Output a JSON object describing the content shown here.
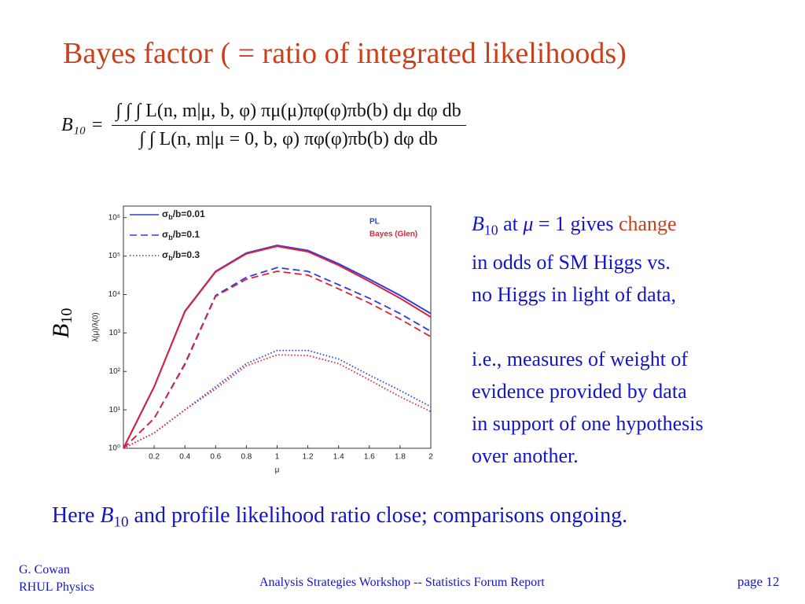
{
  "header": {
    "title": "Bayes factor ( = ratio of integrated likelihoods)"
  },
  "formula": {
    "lhs": "B₁₀ =",
    "numerator": "∫ ∫ ∫ L(n, m|μ, b, φ) πμ(μ)πφ(φ)πb(b) dμ dφ db",
    "denominator": "∫ ∫ L(n, m|μ = 0, b, φ) πφ(φ)πb(b) dφ db"
  },
  "side_text": [
    [
      [
        {
          "text": "B",
          "italic": true
        },
        {
          "text": "10",
          "sub": true
        },
        {
          "text": " at "
        },
        {
          "text": "μ",
          "italic": true
        },
        {
          "text": " = 1 gives "
        },
        {
          "text": "change",
          "color": "#c8401c"
        }
      ],
      [
        {
          "text": "in odds of SM Higgs vs."
        }
      ],
      [
        {
          "text": "no Higgs in light of data,"
        }
      ]
    ],
    [
      [
        {
          "text": "i.e., measures of weight of"
        }
      ],
      [
        {
          "text": "evidence provided by data"
        }
      ],
      [
        {
          "text": "in support of one hypothesis"
        }
      ],
      [
        {
          "text": "over another."
        }
      ]
    ]
  ],
  "bottom_text": [
    {
      "text": "Here "
    },
    {
      "text": "B",
      "italic": true
    },
    {
      "text": "10",
      "sub": true
    },
    {
      "text": " and profile likelihood ratio close; comparisons ongoing."
    }
  ],
  "footer": {
    "author": "G. Cowan",
    "institution": "RHUL Physics",
    "event": "Analysis Strategies Workshop -- Statistics Forum Report",
    "page": "page 12"
  },
  "chart_data": {
    "type": "line",
    "outer_label": {
      "symbol": "B",
      "sub": "10"
    },
    "x_label": "μ",
    "y_label": "λ(μ)/λ(0)",
    "ylog": true,
    "x": [
      0,
      0.2,
      0.4,
      0.6,
      0.8,
      1.0,
      1.2,
      1.4,
      1.6,
      1.8,
      2.0
    ],
    "xlim": [
      0,
      2
    ],
    "xticks": [
      0.2,
      0.4,
      0.6,
      0.8,
      1,
      1.2,
      1.4,
      1.6,
      1.8,
      2
    ],
    "ylim": [
      1,
      2000000
    ],
    "yticks": [
      {
        "value": 1,
        "label": "10⁰"
      },
      {
        "value": 10,
        "label": "10¹"
      },
      {
        "value": 100,
        "label": "10²"
      },
      {
        "value": 1000,
        "label": "10³"
      },
      {
        "value": 10000,
        "label": "10⁴"
      },
      {
        "value": 100000,
        "label": "10⁵"
      },
      {
        "value": 1000000,
        "label": "10⁶"
      }
    ],
    "style_legend": [
      {
        "symbol": "σ",
        "sub": "b",
        "rest": "/b=0.01",
        "dash": "solid"
      },
      {
        "symbol": "σ",
        "sub": "b",
        "rest": "/b=0.1",
        "dash": "dashed"
      },
      {
        "symbol": "σ",
        "sub": "b",
        "rest": "/b=0.3",
        "dash": "dotted"
      }
    ],
    "color_legend": [
      {
        "label": "PL",
        "color": "#2b3fe0"
      },
      {
        "label": "Bayes (Glen)",
        "color": "#e0203a"
      }
    ],
    "series": [
      {
        "name": "PL",
        "color": "#2b3fe0",
        "dash": "solid",
        "values": [
          1,
          40,
          3700,
          40000,
          120000,
          190000,
          140000,
          63000,
          25000,
          9500,
          3200
        ]
      },
      {
        "name": "Bayes (Glen)",
        "color": "#e0203a",
        "dash": "solid",
        "values": [
          1,
          40,
          3600,
          39000,
          115000,
          180000,
          130000,
          58000,
          22000,
          8000,
          2600
        ]
      },
      {
        "name": "PL",
        "color": "#2b3fe0",
        "dash": "dashed",
        "values": [
          1,
          6,
          160,
          9500,
          28000,
          50000,
          40000,
          18000,
          8000,
          3200,
          1100
        ]
      },
      {
        "name": "Bayes (Glen)",
        "color": "#e0203a",
        "dash": "dashed",
        "values": [
          1,
          6,
          150,
          9000,
          25000,
          40000,
          32000,
          14000,
          6000,
          2300,
          800
        ]
      },
      {
        "name": "PL",
        "color": "#2b3fe0",
        "dash": "dotted",
        "values": [
          1,
          2.5,
          10,
          40,
          160,
          350,
          350,
          210,
          80,
          32,
          12
        ]
      },
      {
        "name": "Bayes (Glen)",
        "color": "#e0203a",
        "dash": "dotted",
        "values": [
          1,
          2.5,
          10,
          35,
          140,
          270,
          260,
          160,
          60,
          22,
          9
        ]
      }
    ]
  }
}
